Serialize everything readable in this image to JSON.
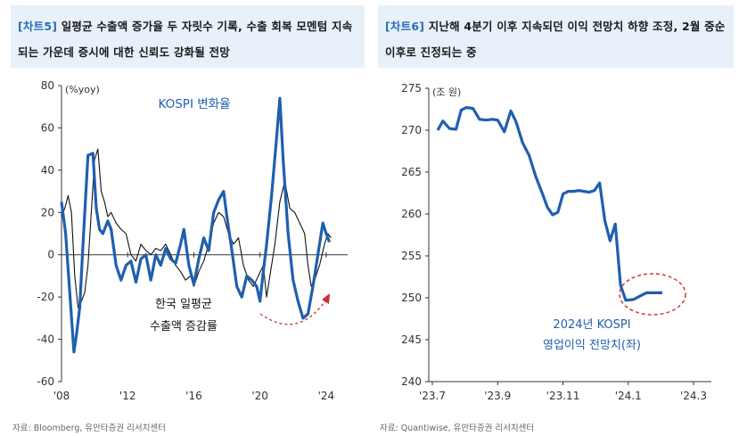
{
  "left_panel": {
    "tag": "[차트5]",
    "title": "일평균 수출액 증가율 두 자릿수 기록, 수출 회복 모멘텀 지속되는 가운데 증시에 대한 신뢰도 강화될 전망",
    "source": "자료: Bloomberg, 유안타증권 리서치센터"
  },
  "right_panel": {
    "tag": "[차트6]",
    "title": "지난해 4분기 이후 지속되던 이익 전망치 하향 조정, 2월 중순 이후로 진정되는 중",
    "source": "자료: Quantiwise, 유안타증권 리서치센터"
  },
  "colors": {
    "kospi": "#1f5fae",
    "exports": "#111111",
    "arrow": "#d42a2a",
    "header_bg": "#e8f1fa"
  },
  "chart_data": [
    {
      "type": "line",
      "title": "",
      "ylabel": "(%yoy)",
      "xlabel": "",
      "ylim": [
        -60,
        80
      ],
      "yticks": [
        80,
        60,
        40,
        20,
        0,
        -20,
        -40,
        -60
      ],
      "xlim": [
        2008,
        2025.3
      ],
      "xticks": [
        2008,
        2012,
        2016,
        2020,
        2024
      ],
      "xtick_labels": [
        "'08",
        "'12",
        "'16",
        "'20",
        "'24"
      ],
      "annotations": [
        "KOSPI 변화율",
        "한국 일평균",
        "수출액 증감률"
      ],
      "series": [
        {
          "name": "KOSPI 변화율",
          "x": [
            2008.0,
            2008.25,
            2008.5,
            2008.75,
            2008.9,
            2009.1,
            2009.3,
            2009.6,
            2009.9,
            2010.1,
            2010.3,
            2010.5,
            2010.8,
            2011.0,
            2011.3,
            2011.6,
            2011.9,
            2012.2,
            2012.5,
            2012.8,
            2013.1,
            2013.4,
            2013.7,
            2014.0,
            2014.3,
            2014.6,
            2014.9,
            2015.2,
            2015.4,
            2015.7,
            2016.0,
            2016.3,
            2016.6,
            2016.9,
            2017.2,
            2017.5,
            2017.8,
            2018.0,
            2018.3,
            2018.6,
            2018.9,
            2019.2,
            2019.5,
            2019.8,
            2020.0,
            2020.2,
            2020.4,
            2020.7,
            2021.0,
            2021.2,
            2021.4,
            2021.7,
            2022.0,
            2022.3,
            2022.6,
            2022.9,
            2023.2,
            2023.5,
            2023.8,
            2024.0,
            2024.2
          ],
          "values": [
            25,
            10,
            -18,
            -46,
            -38,
            -25,
            5,
            47,
            48,
            22,
            12,
            10,
            16,
            12,
            -5,
            -12,
            -5,
            -3,
            -13,
            -2,
            0,
            -12,
            0,
            -5,
            3,
            -2,
            -4,
            5,
            12,
            -5,
            -14,
            -2,
            8,
            2,
            20,
            26,
            30,
            18,
            2,
            -15,
            -20,
            -10,
            -12,
            -15,
            -22,
            -8,
            5,
            28,
            55,
            74,
            45,
            10,
            -12,
            -22,
            -30,
            -28,
            -15,
            0,
            15,
            10,
            6
          ]
        },
        {
          "name": "한국 일평균 수출액 증감률",
          "x": [
            2008.0,
            2008.2,
            2008.4,
            2008.6,
            2008.8,
            2009.0,
            2009.2,
            2009.4,
            2009.6,
            2009.8,
            2010.0,
            2010.2,
            2010.4,
            2010.6,
            2010.8,
            2011.0,
            2011.3,
            2011.6,
            2011.9,
            2012.2,
            2012.5,
            2012.8,
            2013.1,
            2013.4,
            2013.7,
            2014.0,
            2014.3,
            2014.6,
            2014.9,
            2015.2,
            2015.5,
            2015.8,
            2016.0,
            2016.3,
            2016.6,
            2016.9,
            2017.2,
            2017.5,
            2017.8,
            2018.1,
            2018.4,
            2018.7,
            2019.0,
            2019.3,
            2019.6,
            2019.9,
            2020.2,
            2020.4,
            2020.6,
            2020.9,
            2021.2,
            2021.5,
            2021.8,
            2022.1,
            2022.4,
            2022.7,
            2022.9,
            2023.1,
            2023.3,
            2023.6,
            2023.9,
            2024.1,
            2024.3
          ],
          "values": [
            18,
            22,
            28,
            20,
            -10,
            -25,
            -22,
            -18,
            -5,
            20,
            45,
            50,
            30,
            25,
            18,
            20,
            15,
            12,
            10,
            0,
            -3,
            5,
            2,
            0,
            3,
            2,
            5,
            0,
            -5,
            -8,
            -12,
            -10,
            -15,
            -8,
            -3,
            5,
            15,
            20,
            18,
            10,
            5,
            8,
            -5,
            -12,
            -15,
            -10,
            -5,
            -20,
            -10,
            5,
            25,
            35,
            22,
            20,
            15,
            10,
            -5,
            -15,
            -12,
            -5,
            5,
            10,
            8
          ]
        }
      ]
    },
    {
      "type": "line",
      "title": "",
      "ylabel": "(조 원)",
      "xlabel": "",
      "ylim": [
        240,
        275
      ],
      "yticks": [
        275,
        270,
        265,
        260,
        255,
        250,
        245,
        240
      ],
      "xtick_labels": [
        "'23.7",
        "'23.9",
        "'23.11",
        "'24.1",
        "'24.3"
      ],
      "annotations": [
        "2024년 KOSPI",
        "영업이익 전망치(좌)"
      ],
      "series": [
        {
          "name": "2024년 KOSPI 영업이익 전망치(좌)",
          "x": [
            0,
            0.2,
            0.45,
            0.7,
            0.9,
            1.1,
            1.35,
            1.6,
            1.85,
            2.1,
            2.3,
            2.55,
            2.8,
            3.0,
            3.25,
            3.5,
            3.75,
            4.0,
            4.2,
            4.4,
            4.6,
            4.8,
            5.0,
            5.2,
            5.4,
            5.6,
            5.8,
            6.0,
            6.2,
            6.4,
            6.6,
            6.8,
            7.0,
            7.2,
            7.5,
            7.8,
            8.0,
            8.2,
            8.4,
            8.6,
            8.75,
            8.95,
            9.1,
            9.3,
            9.6,
            10.0
          ],
          "values": [
            270.0,
            271.1,
            270.2,
            270.1,
            272.4,
            272.7,
            272.6,
            271.3,
            271.2,
            271.3,
            271.2,
            269.8,
            272.3,
            271.0,
            268.5,
            267.0,
            264.5,
            262.5,
            260.8,
            259.9,
            260.2,
            262.4,
            262.7,
            262.7,
            262.8,
            262.7,
            262.6,
            262.8,
            263.7,
            259.2,
            256.8,
            258.8,
            251.5,
            249.7,
            249.8,
            250.3,
            250.6,
            250.6,
            250.6,
            250.6,
            250.6,
            250.6,
            250.6,
            250.6,
            250.6,
            250.6
          ]
        }
      ]
    }
  ]
}
